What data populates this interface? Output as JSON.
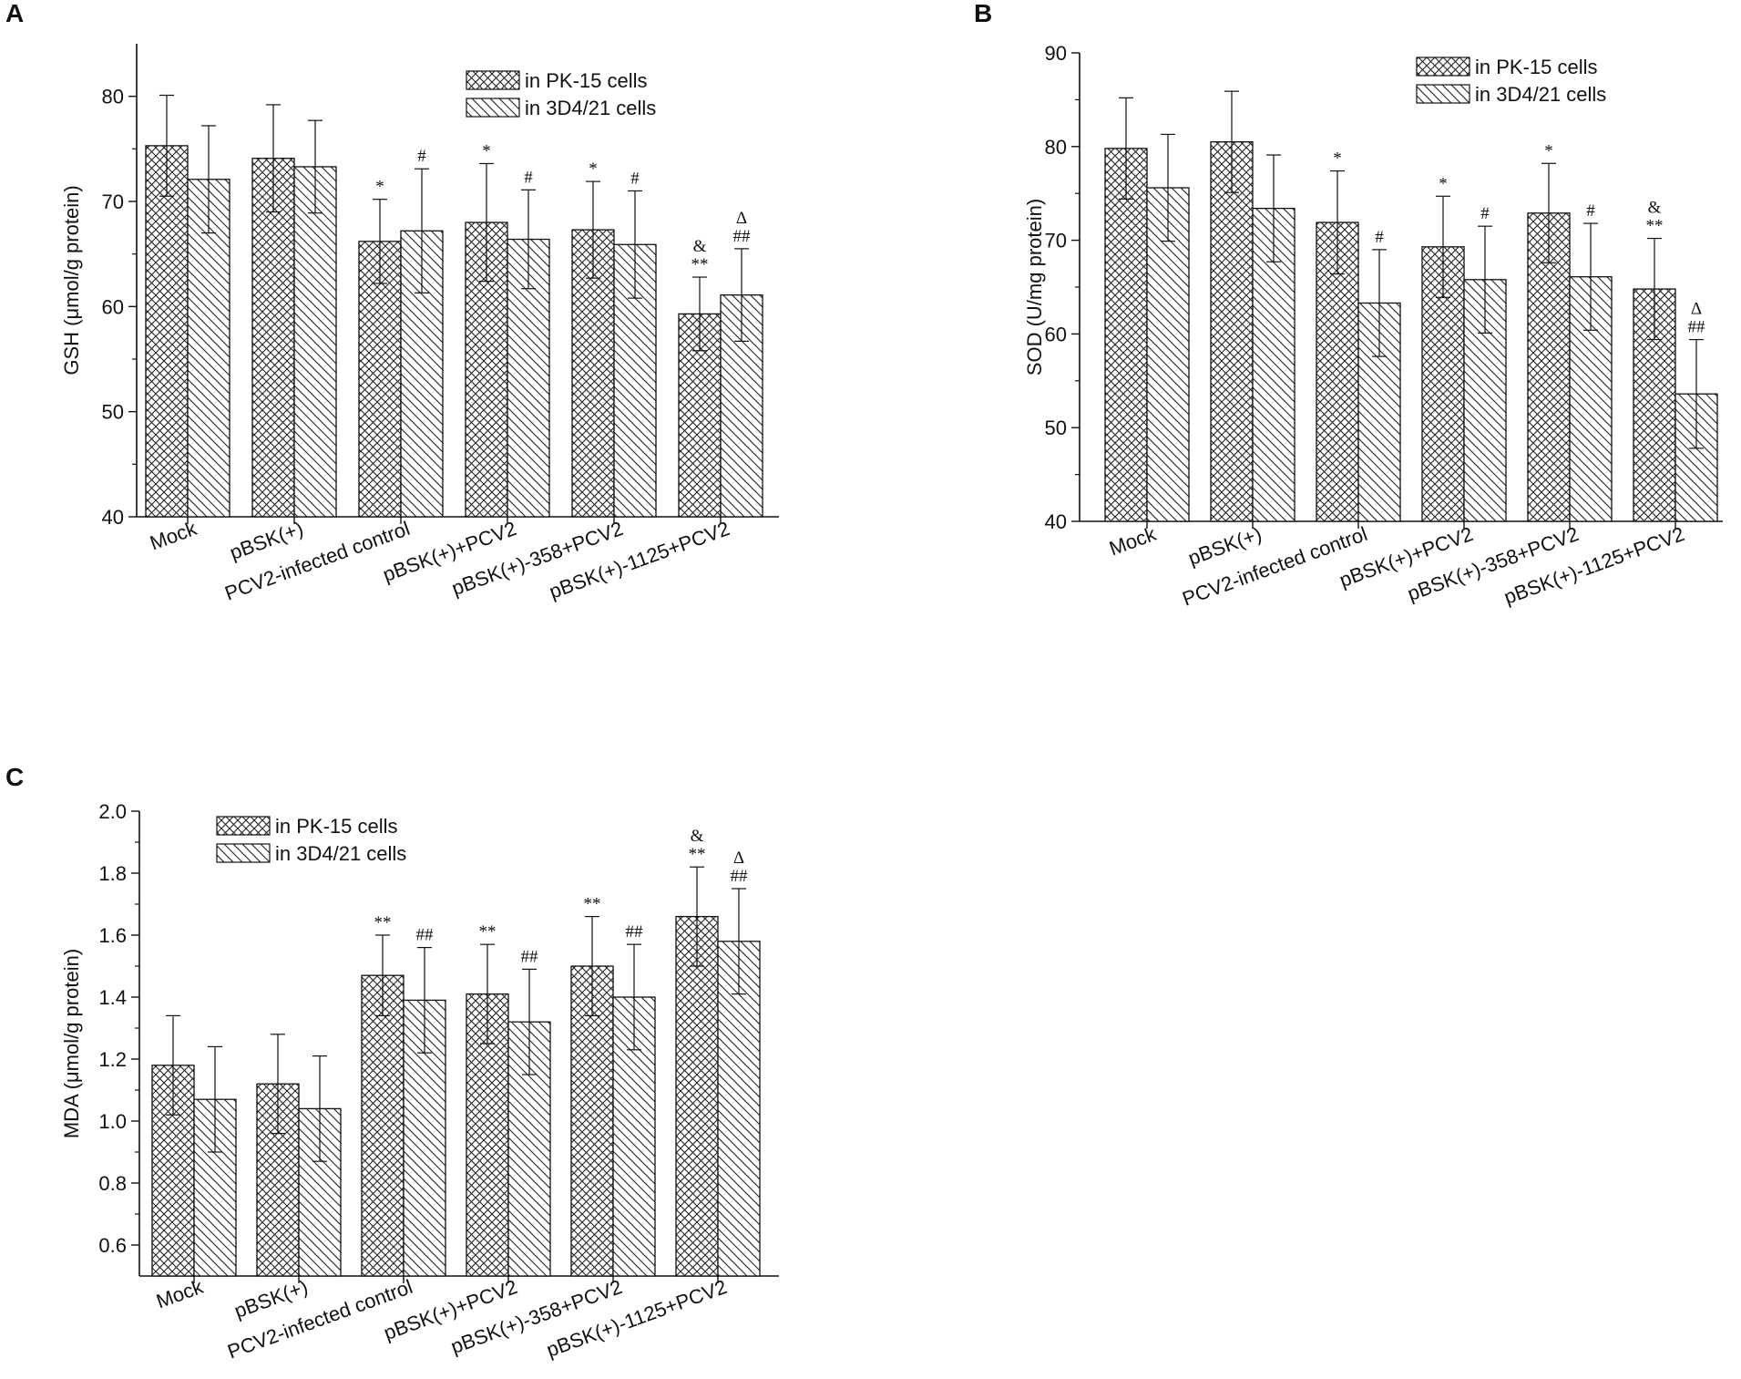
{
  "chart_data": [
    {
      "panel": "A",
      "type": "bar",
      "ylabel": "GSH (μmol/g protein)",
      "ylim": [
        40,
        85
      ],
      "yticks": [
        40,
        50,
        60,
        70,
        80
      ],
      "ytick_labels": [
        "40",
        "50",
        "60",
        "70",
        "80"
      ],
      "categories": [
        "Mock",
        "pBSK(+)",
        "PCV2-infected control",
        "pBSK(+)+PCV2",
        "pBSK(+)-358+PCV2",
        "pBSK(+)-1125+PCV2"
      ],
      "legend": [
        "in PK-15 cells",
        "in 3D4/21 cells"
      ],
      "legend_position": "top-right",
      "series": [
        {
          "name": "in PK-15 cells",
          "pattern": "cross",
          "values": [
            75.3,
            74.1,
            66.2,
            68.0,
            67.3,
            59.3
          ],
          "errors": [
            4.8,
            5.1,
            4.0,
            5.6,
            4.6,
            3.5
          ],
          "annotations": [
            "",
            "",
            "*",
            "*",
            "*",
            "&\n**"
          ]
        },
        {
          "name": "in 3D4/21 cells",
          "pattern": "diag",
          "values": [
            72.1,
            73.3,
            67.2,
            66.4,
            65.9,
            61.1
          ],
          "errors": [
            5.1,
            4.4,
            5.9,
            4.7,
            5.1,
            4.4
          ],
          "annotations": [
            "",
            "",
            "#",
            "#",
            "#",
            "Δ\n##"
          ]
        }
      ]
    },
    {
      "panel": "B",
      "type": "bar",
      "ylabel": "SOD (U/mg protein)",
      "ylim": [
        40,
        90
      ],
      "yticks": [
        40,
        50,
        60,
        70,
        80,
        90
      ],
      "ytick_labels": [
        "40",
        "50",
        "60",
        "70",
        "80",
        "90"
      ],
      "categories": [
        "Mock",
        "pBSK(+)",
        "PCV2-infected control",
        "pBSK(+)+PCV2",
        "pBSK(+)-358+PCV2",
        "pBSK(+)-1125+PCV2"
      ],
      "legend": [
        "in PK-15 cells",
        "in 3D4/21 cells"
      ],
      "legend_position": "top-right",
      "series": [
        {
          "name": "in PK-15 cells",
          "pattern": "cross",
          "values": [
            79.8,
            80.5,
            71.9,
            69.3,
            72.9,
            64.8
          ],
          "errors": [
            5.4,
            5.4,
            5.5,
            5.4,
            5.3,
            5.4
          ],
          "annotations": [
            "",
            "",
            "*",
            "*",
            "*",
            "&\n**"
          ]
        },
        {
          "name": "in 3D4/21 cells",
          "pattern": "diag",
          "values": [
            75.6,
            73.4,
            63.3,
            65.8,
            66.1,
            53.6
          ],
          "errors": [
            5.7,
            5.7,
            5.7,
            5.7,
            5.7,
            5.8
          ],
          "annotations": [
            "",
            "",
            "#",
            "#",
            "#",
            "Δ\n##"
          ]
        }
      ]
    },
    {
      "panel": "C",
      "type": "bar",
      "ylabel": "MDA (μmol/g protein)",
      "ylim": [
        0.5,
        2.0
      ],
      "yticks": [
        0.6,
        0.8,
        1.0,
        1.2,
        1.4,
        1.6,
        1.8,
        2.0
      ],
      "ytick_labels": [
        "0.6",
        "0.8",
        "1.0",
        "1.2",
        "1.4",
        "1.6",
        "1.8",
        "2.0"
      ],
      "categories": [
        "Mock",
        "pBSK(+)",
        "PCV2-infected control",
        "pBSK(+)+PCV2",
        "pBSK(+)-358+PCV2",
        "pBSK(+)-1125+PCV2"
      ],
      "legend": [
        "in PK-15 cells",
        "in 3D4/21 cells"
      ],
      "legend_position": "top-left",
      "series": [
        {
          "name": "in PK-15 cells",
          "pattern": "cross",
          "values": [
            1.18,
            1.12,
            1.47,
            1.41,
            1.5,
            1.66
          ],
          "errors": [
            0.16,
            0.16,
            0.13,
            0.16,
            0.16,
            0.16
          ],
          "annotations": [
            "",
            "",
            "**",
            "**",
            "**",
            "&\n**"
          ]
        },
        {
          "name": "in 3D4/21 cells",
          "pattern": "diag",
          "values": [
            1.07,
            1.04,
            1.39,
            1.32,
            1.4,
            1.58
          ],
          "errors": [
            0.17,
            0.17,
            0.17,
            0.17,
            0.17,
            0.17
          ],
          "annotations": [
            "",
            "",
            "##",
            "##",
            "##",
            "Δ\n##"
          ]
        }
      ]
    }
  ]
}
